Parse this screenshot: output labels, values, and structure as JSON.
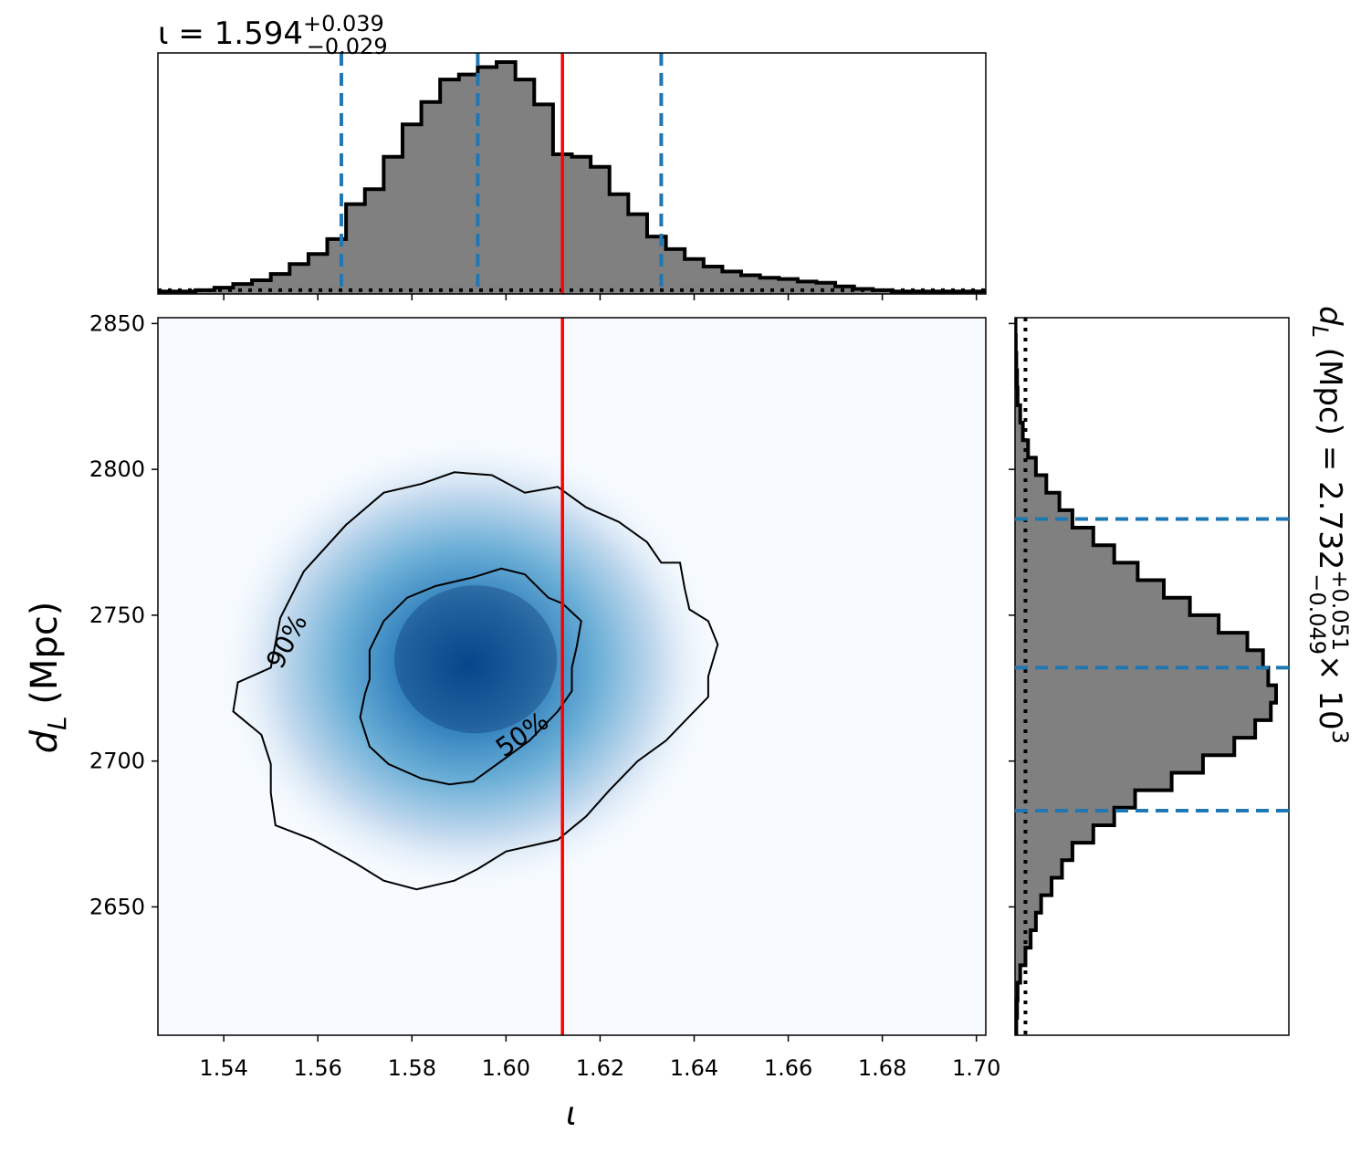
{
  "chart_data": [
    {
      "panel": "top-marginal",
      "type": "histogram",
      "title": {
        "symbol": "ι",
        "median": "1.594",
        "plus": "+0.039",
        "minus": "−0.029"
      },
      "xlim": [
        1.526,
        1.702
      ],
      "x_ticks": [
        1.54,
        1.56,
        1.58,
        1.6,
        1.62,
        1.64,
        1.66,
        1.68,
        1.7
      ],
      "bin_edges": [
        1.526,
        1.53,
        1.534,
        1.538,
        1.542,
        1.546,
        1.55,
        1.554,
        1.558,
        1.562,
        1.566,
        1.57,
        1.574,
        1.578,
        1.582,
        1.586,
        1.59,
        1.594,
        1.598,
        1.602,
        1.606,
        1.61,
        1.614,
        1.618,
        1.622,
        1.626,
        1.63,
        1.634,
        1.638,
        1.642,
        1.646,
        1.65,
        1.654,
        1.658,
        1.662,
        1.666,
        1.67,
        1.674,
        1.678,
        1.682,
        1.686,
        1.69,
        1.694,
        1.698,
        1.702
      ],
      "counts": [
        0.01,
        0.01,
        0.015,
        0.025,
        0.04,
        0.055,
        0.08,
        0.12,
        0.16,
        0.22,
        0.36,
        0.42,
        0.55,
        0.68,
        0.77,
        0.86,
        0.88,
        0.91,
        0.93,
        0.86,
        0.76,
        0.56,
        0.55,
        0.51,
        0.4,
        0.32,
        0.23,
        0.18,
        0.14,
        0.11,
        0.09,
        0.075,
        0.065,
        0.06,
        0.05,
        0.045,
        0.03,
        0.02,
        0.015,
        0.01,
        0.01,
        0.01,
        0.01,
        0.01
      ],
      "quantile_lines": [
        1.565,
        1.594,
        1.633
      ],
      "truth": 1.612,
      "prior_level": 0.015,
      "colors": {
        "fill": "#808080",
        "edge": "#000000",
        "quantile": "#1f77b4",
        "truth": "#ff0000"
      }
    },
    {
      "panel": "joint",
      "type": "heatmap",
      "xlabel": "ι",
      "ylabel": "d_L (Mpc)",
      "xlim": [
        1.526,
        1.702
      ],
      "ylim": [
        2606,
        2852
      ],
      "x_ticks": [
        1.54,
        1.56,
        1.58,
        1.6,
        1.62,
        1.64,
        1.66,
        1.68,
        1.7
      ],
      "y_ticks": [
        2650,
        2700,
        2750,
        2800,
        2850
      ],
      "density_peak": {
        "x": 1.592,
        "y": 2733
      },
      "density_sigma": {
        "x": 0.015,
        "y": 22
      },
      "contours": [
        {
          "label": "90%",
          "points": [
            [
              1.55,
              2732
            ],
            [
              1.552,
              2749
            ],
            [
              1.557,
              2765
            ],
            [
              1.566,
              2781
            ],
            [
              1.574,
              2792
            ],
            [
              1.582,
              2795
            ],
            [
              1.589,
              2799
            ],
            [
              1.597,
              2798
            ],
            [
              1.604,
              2792
            ],
            [
              1.611,
              2794
            ],
            [
              1.617,
              2787
            ],
            [
              1.624,
              2782
            ],
            [
              1.63,
              2775
            ],
            [
              1.633,
              2768
            ],
            [
              1.637,
              2768
            ],
            [
              1.638,
              2759
            ],
            [
              1.639,
              2752
            ],
            [
              1.643,
              2748
            ],
            [
              1.645,
              2740
            ],
            [
              1.643,
              2729
            ],
            [
              1.643,
              2722
            ],
            [
              1.634,
              2707
            ],
            [
              1.628,
              2700
            ],
            [
              1.622,
              2690
            ],
            [
              1.617,
              2681
            ],
            [
              1.611,
              2673
            ],
            [
              1.6,
              2669
            ],
            [
              1.594,
              2663
            ],
            [
              1.589,
              2659
            ],
            [
              1.581,
              2656
            ],
            [
              1.574,
              2659
            ],
            [
              1.568,
              2665
            ],
            [
              1.559,
              2673
            ],
            [
              1.551,
              2678
            ],
            [
              1.55,
              2689
            ],
            [
              1.55,
              2699
            ],
            [
              1.548,
              2709
            ],
            [
              1.542,
              2717
            ],
            [
              1.543,
              2727
            ],
            [
              1.55,
              2732
            ]
          ]
        },
        {
          "label": "50%",
          "points": [
            [
              1.571,
              2728
            ],
            [
              1.571,
              2738
            ],
            [
              1.574,
              2748
            ],
            [
              1.579,
              2756
            ],
            [
              1.585,
              2760
            ],
            [
              1.593,
              2763
            ],
            [
              1.599,
              2766
            ],
            [
              1.604,
              2764
            ],
            [
              1.609,
              2756
            ],
            [
              1.612,
              2754
            ],
            [
              1.616,
              2748
            ],
            [
              1.615,
              2739
            ],
            [
              1.614,
              2732
            ],
            [
              1.614,
              2724
            ],
            [
              1.611,
              2717
            ],
            [
              1.605,
              2707
            ],
            [
              1.599,
              2700
            ],
            [
              1.593,
              2693
            ],
            [
              1.588,
              2692
            ],
            [
              1.582,
              2694
            ],
            [
              1.575,
              2699
            ],
            [
              1.571,
              2705
            ],
            [
              1.569,
              2715
            ],
            [
              1.57,
              2723
            ],
            [
              1.571,
              2728
            ]
          ]
        }
      ],
      "contour_labels": [
        "90%",
        "50%"
      ],
      "truth": 1.612
    },
    {
      "panel": "right-marginal",
      "type": "histogram",
      "orientation": "horizontal",
      "title": {
        "symbol": "d_L (Mpc)",
        "median": "2.732",
        "plus": "+0.051",
        "minus": "−0.049",
        "multiplier": "× 10",
        "exponent": "3"
      },
      "ylim": [
        2606,
        2852
      ],
      "bin_edges": [
        2606,
        2612,
        2618,
        2624,
        2630,
        2636,
        2642,
        2648,
        2654,
        2660,
        2666,
        2672,
        2678,
        2684,
        2690,
        2696,
        2702,
        2708,
        2714,
        2720,
        2726,
        2732,
        2738,
        2744,
        2750,
        2756,
        2762,
        2768,
        2774,
        2780,
        2786,
        2792,
        2798,
        2804,
        2810,
        2816,
        2822,
        2828,
        2834,
        2840,
        2846,
        2852
      ],
      "counts": [
        0.005,
        0.008,
        0.01,
        0.02,
        0.04,
        0.06,
        0.08,
        0.1,
        0.14,
        0.18,
        0.22,
        0.3,
        0.38,
        0.46,
        0.6,
        0.72,
        0.84,
        0.92,
        0.98,
        1.0,
        0.97,
        0.95,
        0.89,
        0.78,
        0.67,
        0.57,
        0.47,
        0.38,
        0.3,
        0.22,
        0.17,
        0.12,
        0.08,
        0.05,
        0.03,
        0.02,
        0.01,
        0.008,
        0.005,
        0.003,
        0.002
      ],
      "quantile_lines": [
        2683,
        2732,
        2783
      ],
      "prior_level": 0.04,
      "colors": {
        "fill": "#808080",
        "edge": "#000000",
        "quantile": "#1f77b4"
      }
    }
  ]
}
